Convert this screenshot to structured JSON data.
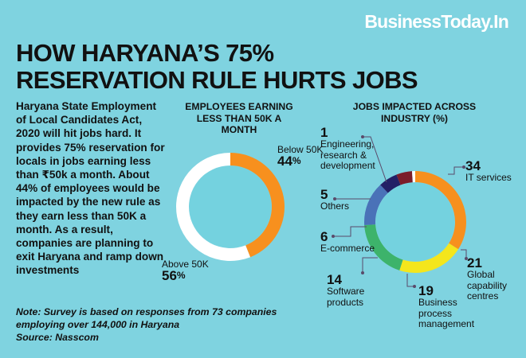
{
  "brand": "BusinessToday.In",
  "title_lines": [
    "HOW HARYANA’S 75%",
    "RESERVATION RULE HURTS JOBS"
  ],
  "intro": "Haryana State Employment of Local Candidates Act, 2020 will hit jobs hard. It provides 75% reservation for locals in jobs earning less than ₹50k a month. About 44% of employees would be impacted by the new rule as they earn less than 50K a month. As a result, companies are planning to exit Haryana and ramp down investments",
  "footnote_lines": [
    "Note: Survey is based on responses from 73 companies",
    "employing over 144,000 in Haryana",
    "Source: Nasscom"
  ],
  "colors": {
    "background": "#7fd3e0",
    "inner": "#74d2df",
    "white": "#ffffff",
    "orange": "#f7901e",
    "yellow": "#f4e61c",
    "green": "#3db36b",
    "blue": "#4a72b8",
    "navy": "#232066",
    "maroon": "#7b1d2a",
    "line": "#5a4a6a"
  },
  "chart_data": [
    {
      "type": "pie",
      "title": "EMPLOYEES EARNING LESS THAN 50K A MONTH",
      "categories": [
        "Below 50K",
        "Above 50K"
      ],
      "values": [
        44,
        56
      ],
      "value_suffix": "%",
      "colors": [
        "#f7901e",
        "#ffffff"
      ]
    },
    {
      "type": "pie",
      "title": "JOBS IMPACTED ACROSS INDUSTRY (%)",
      "categories": [
        "IT services",
        "Global capability centres",
        "Business process management",
        "Software products",
        "E-commerce",
        "Others",
        "Engineering, research & development"
      ],
      "values": [
        34,
        21,
        19,
        14,
        6,
        5,
        1
      ],
      "colors": [
        "#f7901e",
        "#f4e61c",
        "#3db36b",
        "#4a72b8",
        "#232066",
        "#7b1d2a",
        "#ffffff"
      ]
    }
  ]
}
